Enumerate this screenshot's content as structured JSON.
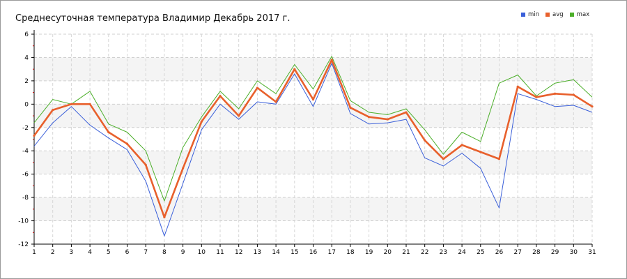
{
  "chart_data": {
    "type": "line",
    "title": "Среднесуточная температура Владимир  Декабрь 2017 г.",
    "xlabel": "",
    "ylabel": "",
    "ylim": [
      -12,
      6
    ],
    "yticks": [
      6,
      4,
      2,
      0,
      -2,
      -4,
      -6,
      -8,
      -10,
      -12
    ],
    "x": [
      1,
      2,
      3,
      4,
      5,
      6,
      7,
      8,
      9,
      10,
      11,
      12,
      13,
      14,
      15,
      16,
      17,
      18,
      19,
      20,
      21,
      22,
      23,
      24,
      25,
      26,
      27,
      28,
      29,
      30,
      31
    ],
    "grid": true,
    "legend_position": "top-right",
    "series": [
      {
        "name": "min",
        "color": "#3a5fd9",
        "values": [
          -3.6,
          -1.6,
          -0.2,
          -1.8,
          -2.9,
          -3.9,
          -6.6,
          -11.3,
          -6.8,
          -2.2,
          0.0,
          -1.3,
          0.2,
          0.0,
          2.6,
          -0.2,
          3.5,
          -0.8,
          -1.7,
          -1.6,
          -1.3,
          -4.6,
          -5.3,
          -4.2,
          -5.5,
          -8.9,
          0.9,
          0.4,
          -0.2,
          -0.1,
          -0.7
        ]
      },
      {
        "name": "avg",
        "color": "#e8602c",
        "values": [
          -2.7,
          -0.5,
          0.0,
          0.0,
          -2.4,
          -3.4,
          -5.2,
          -9.7,
          -5.5,
          -1.5,
          0.7,
          -1.0,
          1.4,
          0.2,
          3.0,
          0.4,
          3.8,
          -0.3,
          -1.1,
          -1.3,
          -0.7,
          -3.1,
          -4.7,
          -3.5,
          -4.1,
          -4.7,
          1.5,
          0.6,
          0.9,
          0.8,
          -0.2
        ]
      },
      {
        "name": "max",
        "color": "#4caf2a",
        "values": [
          -1.6,
          0.4,
          0.0,
          1.1,
          -1.7,
          -2.4,
          -4.0,
          -8.3,
          -3.7,
          -1.1,
          1.1,
          -0.4,
          2.0,
          0.9,
          3.4,
          1.3,
          4.1,
          0.3,
          -0.7,
          -0.9,
          -0.4,
          -2.2,
          -4.3,
          -2.4,
          -3.2,
          1.8,
          2.5,
          0.7,
          1.8,
          2.1,
          0.6
        ]
      }
    ]
  }
}
